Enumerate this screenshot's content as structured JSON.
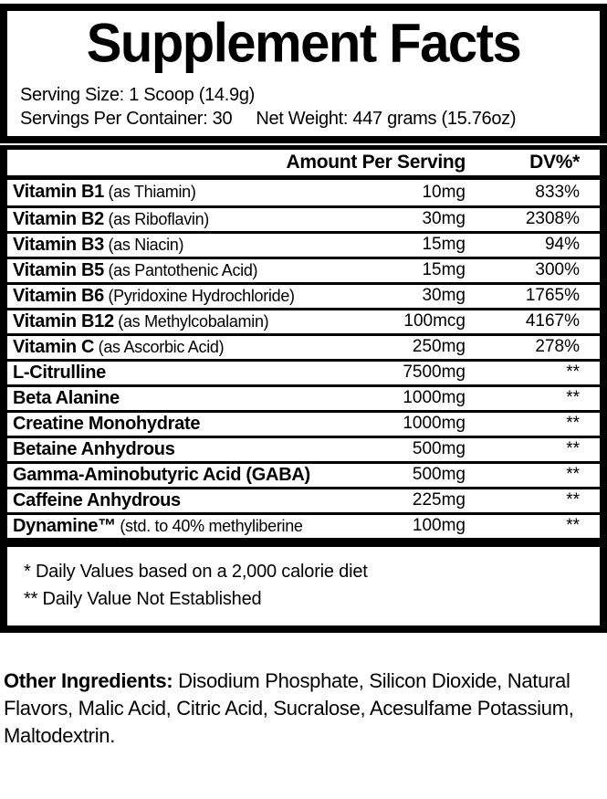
{
  "label": {
    "title": "Supplement Facts",
    "serving_size": "Serving Size: 1 Scoop (14.9g)",
    "servings_per_container": "Servings Per Container: 30",
    "net_weight": "Net Weight: 447 grams (15.76oz)"
  },
  "table": {
    "amount_header": "Amount Per Serving",
    "dv_header": "DV%*",
    "rows": [
      {
        "name": "Vitamin B1",
        "detail": "(as Thiamin)",
        "amount": "10mg",
        "dv": "833%"
      },
      {
        "name": "Vitamin B2",
        "detail": "(as Riboflavin)",
        "amount": "30mg",
        "dv": "2308%"
      },
      {
        "name": "Vitamin B3",
        "detail": "(as Niacin)",
        "amount": "15mg",
        "dv": "94%"
      },
      {
        "name": "Vitamin B5",
        "detail": "(as Pantothenic Acid)",
        "amount": "15mg",
        "dv": "300%"
      },
      {
        "name": "Vitamin B6",
        "detail": "(Pyridoxine Hydrochloride)",
        "amount": "30mg",
        "dv": "1765%"
      },
      {
        "name": "Vitamin B12",
        "detail": "(as Methylcobalamin)",
        "amount": "100mcg",
        "dv": "4167%"
      },
      {
        "name": "Vitamin C",
        "detail": "(as Ascorbic Acid)",
        "amount": "250mg",
        "dv": "278%"
      },
      {
        "name": "L-Citrulline",
        "detail": "",
        "amount": "7500mg",
        "dv": "**"
      },
      {
        "name": "Beta Alanine",
        "detail": "",
        "amount": "1000mg",
        "dv": "**"
      },
      {
        "name": "Creatine Monohydrate",
        "detail": "",
        "amount": "1000mg",
        "dv": "**"
      },
      {
        "name": "Betaine Anhydrous",
        "detail": "",
        "amount": "500mg",
        "dv": "**"
      },
      {
        "name": "Gamma-Aminobutyric Acid (GABA)",
        "detail": "",
        "amount": "500mg",
        "dv": "**"
      },
      {
        "name": "Caffeine Anhydrous",
        "detail": "",
        "amount": "225mg",
        "dv": "**"
      },
      {
        "name": "Dynamine™",
        "detail": "(std. to 40% methyliberine",
        "amount": "100mg",
        "dv": "**"
      }
    ],
    "footnotes": [
      "* Daily Values based on a 2,000 calorie diet",
      "** Daily Value Not Established"
    ]
  },
  "other_ingredients": {
    "label": "Other Ingredients:",
    "text": "Disodium Phosphate, Silicon Dioxide, Natural Flavors, Malic Acid, Citric Acid, Sucralose, Acesulfame Potassium, Maltodextrin."
  },
  "colors": {
    "ink": "#000000",
    "background": "#ffffff"
  }
}
